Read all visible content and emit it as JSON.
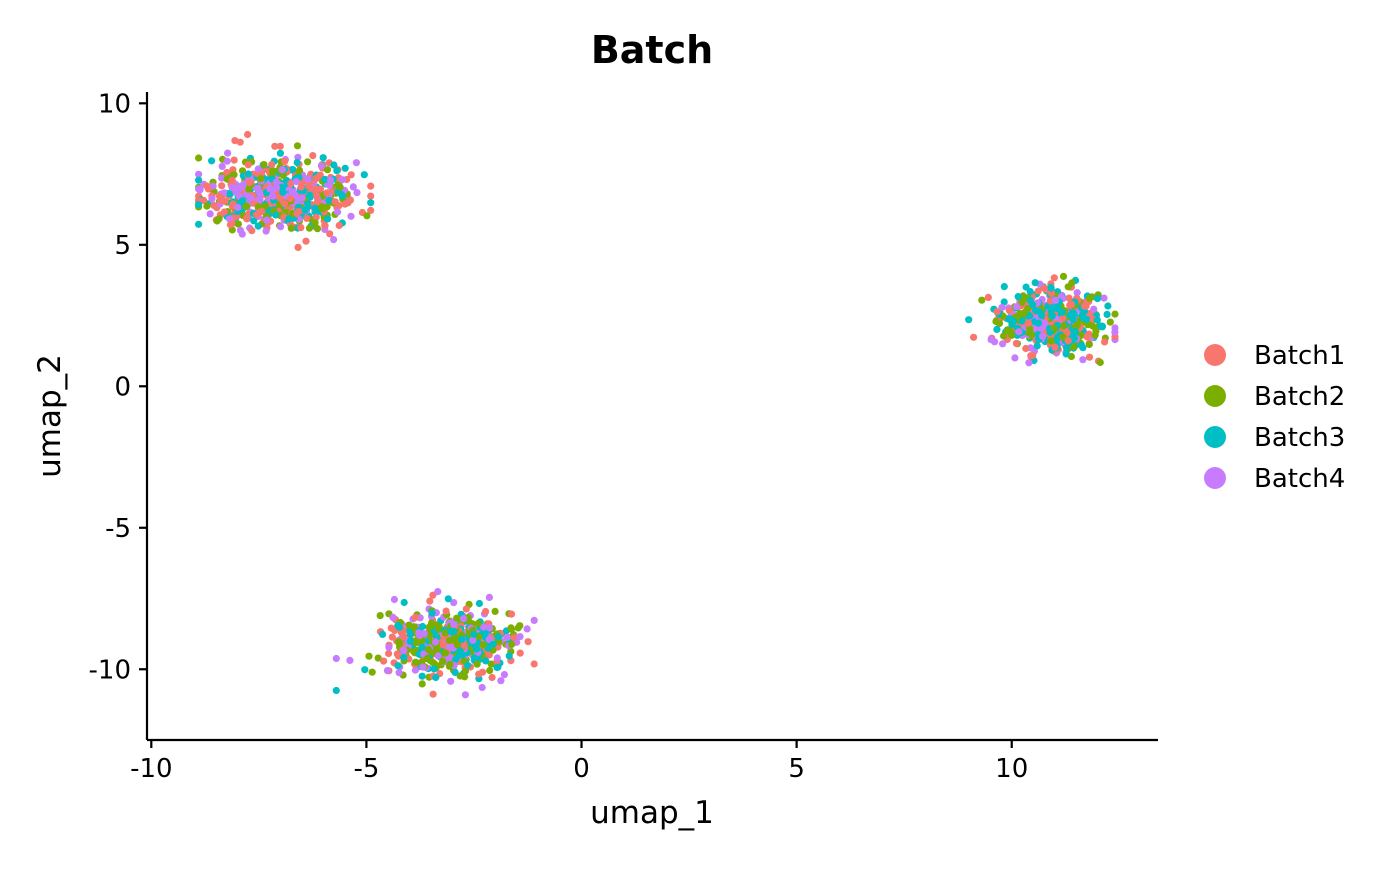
{
  "chart_data": {
    "type": "scatter",
    "title": "Batch",
    "xlabel": "umap_1",
    "ylabel": "umap_2",
    "xlim": [
      -10.1,
      13.4
    ],
    "ylim": [
      -12.5,
      10.4
    ],
    "x_ticks": [
      -10,
      -5,
      0,
      5,
      10
    ],
    "y_ticks": [
      10,
      5,
      0,
      -5,
      -10
    ],
    "x_tick_labels": [
      "-10",
      "-5",
      "0",
      "5",
      "10"
    ],
    "y_tick_labels": [
      "10",
      "5",
      "0",
      "-5",
      "-10"
    ],
    "grid": false,
    "legend_position": "right",
    "series": [
      {
        "name": "Batch1",
        "color": "#F8766D"
      },
      {
        "name": "Batch2",
        "color": "#7CAE00"
      },
      {
        "name": "Batch3",
        "color": "#00BFC4"
      },
      {
        "name": "Batch4",
        "color": "#C77CFF"
      }
    ],
    "clusters": [
      {
        "center": [
          -7.0,
          6.8
        ],
        "spread": [
          1.4,
          1.05
        ],
        "n": 650,
        "xrange": [
          -8.9,
          -4.9
        ],
        "yrange": [
          4.7,
          9.4
        ],
        "bias": 0
      },
      {
        "center": [
          -3.1,
          -9.1
        ],
        "spread": [
          1.15,
          0.95
        ],
        "n": 600,
        "xrange": [
          -5.7,
          -1.1
        ],
        "yrange": [
          -11.4,
          -6.9
        ],
        "bias": 1
      },
      {
        "center": [
          10.9,
          2.3
        ],
        "spread": [
          0.95,
          0.9
        ],
        "n": 600,
        "xrange": [
          9.0,
          12.4
        ],
        "yrange": [
          0.4,
          4.9
        ],
        "bias": 2
      }
    ]
  }
}
